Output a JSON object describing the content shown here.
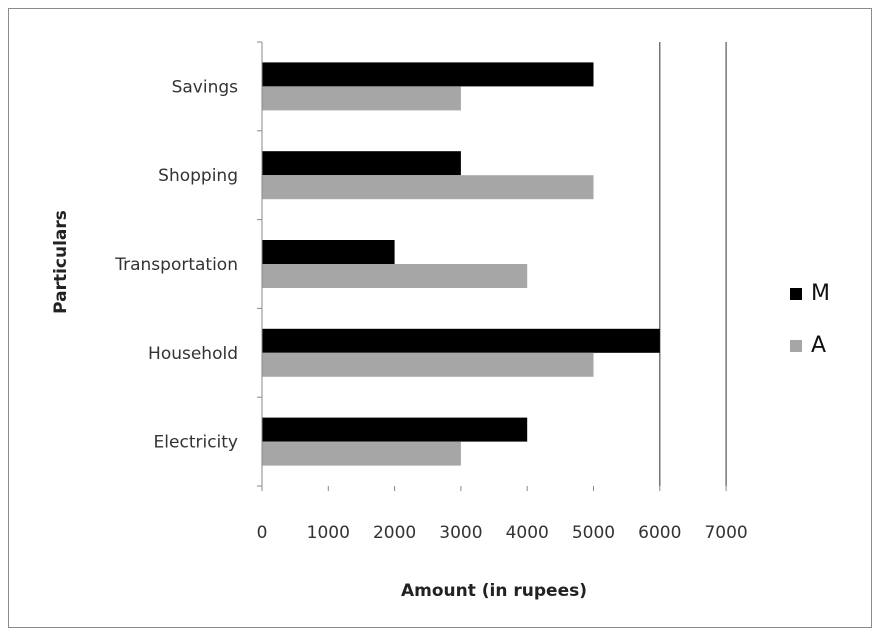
{
  "chart_data": {
    "type": "bar",
    "orientation": "horizontal",
    "categories": [
      "Savings",
      "Shopping",
      "Transportation",
      "Household",
      "Electricity"
    ],
    "series": [
      {
        "name": "M",
        "color": "#000000",
        "values": [
          5000,
          3000,
          2000,
          6000,
          4000
        ]
      },
      {
        "name": "A",
        "color": "#a6a6a6",
        "values": [
          3000,
          5000,
          4000,
          5000,
          3000
        ]
      }
    ],
    "xlabel": "Amount (in rupees)",
    "ylabel": "Particulars",
    "xlim": [
      0,
      7000
    ],
    "xticks": [
      "0",
      "1000",
      "2000",
      "3000",
      "4000",
      "5000",
      "6000",
      "7000"
    ],
    "grid": "vertical gridlines at 6000 and 7000",
    "legend": "right"
  }
}
